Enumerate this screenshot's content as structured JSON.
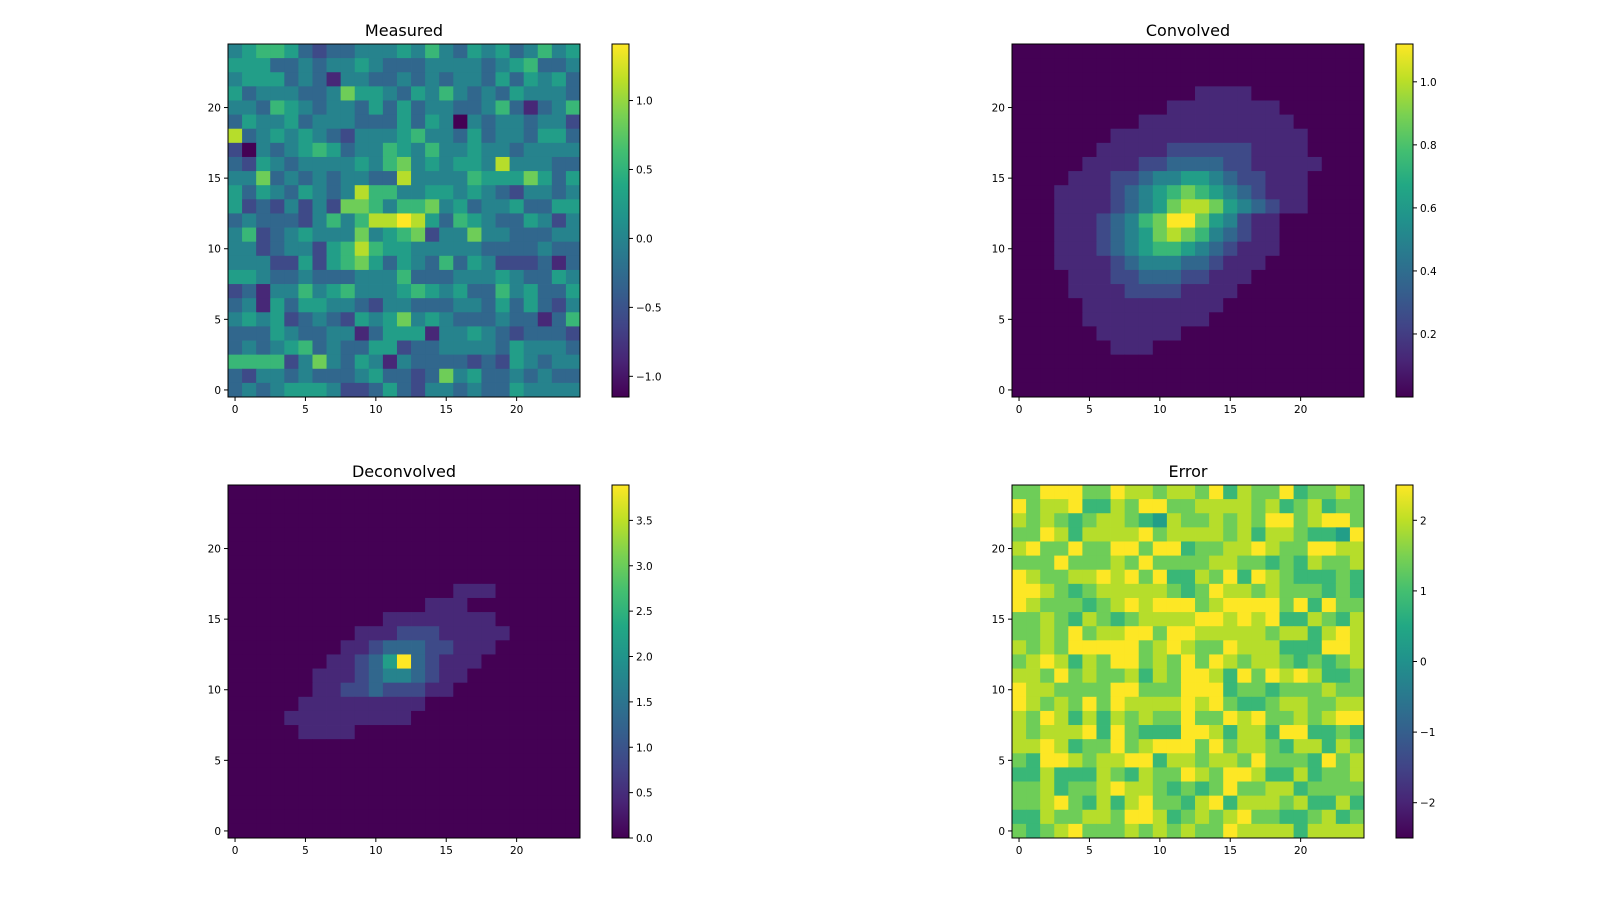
{
  "chart_data": [
    {
      "type": "heatmap",
      "title": "Measured",
      "colormap": "viridis",
      "grid_size": [
        25,
        25
      ],
      "origin": "lower",
      "xticks": [
        "0",
        "5",
        "10",
        "15",
        "20"
      ],
      "yticks": [
        "0",
        "5",
        "10",
        "15",
        "20"
      ],
      "vmin": -1.15,
      "vmax": 1.41,
      "colorbar_ticks": [
        {
          "value": -1.0,
          "label": "−1.0"
        },
        {
          "value": -0.5,
          "label": "−0.5"
        },
        {
          "value": 0.0,
          "label": "0.0"
        },
        {
          "value": 0.5,
          "label": "0.5"
        },
        {
          "value": 1.0,
          "label": "1.0"
        }
      ],
      "levels_note": "rows from y=24 down to y=0; each digit 0-9 is a level linearly mapped from vmin to vmax",
      "rows": [
        "4566532334445464354534645",
        "5553343445433344443456334",
        "4555343144334343443535453",
        "5344433475543546434354443",
        "4436543443535344334631346",
        "3544534443335354043443442",
        "8345454324445644353443553",
        "2043456534465464454434444",
        "3254344445467454554844433",
        "4473434344338444465557535",
        "5354354348664455454324434",
        "5232424277646674534453355",
        "3433324646889853654335424",
        "4623454447456724474433344",
        "4423442568655444443333433",
        "4442252567535436354222313",
        "5543343334446333444543354",
        "2314464564445654533645335",
        "3415355443244333443535324",
        "4545234325457454333433136",
        "3335433441355514454323332",
        "3434563433552334444354443",
        "6666247435414333323254344",
        "3244343334533237453343433",
        "3434555422353244343354444"
      ]
    },
    {
      "type": "heatmap",
      "title": "Convolved",
      "colormap": "viridis",
      "grid_size": [
        25,
        25
      ],
      "origin": "lower",
      "xticks": [
        "0",
        "5",
        "10",
        "15",
        "20"
      ],
      "yticks": [
        "0",
        "5",
        "10",
        "15",
        "20"
      ],
      "vmin": 0.0,
      "vmax": 1.12,
      "colorbar_ticks": [
        {
          "value": 0.2,
          "label": "0.2"
        },
        {
          "value": 0.4,
          "label": "0.4"
        },
        {
          "value": 0.6,
          "label": "0.6"
        },
        {
          "value": 0.8,
          "label": "0.8"
        },
        {
          "value": 1.0,
          "label": "1.0"
        }
      ],
      "levels_note": "rows from y=24 down to y=0; each digit 0-9 is a level linearly mapped from vmin to vmax",
      "rows": [
        "0000000000000000000000000",
        "0000000000000000000000000",
        "0000000000000000000000000",
        "0000000000000111100000000",
        "0000000000011111111000000",
        "0000000001111111111100000",
        "0000000111111111111110000",
        "0000001111122222211110000",
        "0000011112233332211111000",
        "0000111223445543221110000",
        "0001111234567654321110000",
        "0001111234578875432110000",
        "0001112346799754211000000",
        "0001112345787643211000000",
        "0001112345665432111000000",
        "0001111234443321110000000",
        "0000111223332211100000000",
        "0000111122221111000000000",
        "0000011111111110000000000",
        "0000011111111100000000000",
        "0000001111110000000000000",
        "0000000111000000000000000",
        "0000000000000000000000000",
        "0000000000000000000000000",
        "0000000000000000000000000"
      ]
    },
    {
      "type": "heatmap",
      "title": "Deconvolved",
      "colormap": "viridis",
      "grid_size": [
        25,
        25
      ],
      "origin": "lower",
      "xticks": [
        "0",
        "5",
        "10",
        "15",
        "20"
      ],
      "yticks": [
        "0",
        "5",
        "10",
        "15",
        "20"
      ],
      "vmin": 0.0,
      "vmax": 3.89,
      "colorbar_ticks": [
        {
          "value": 0.0,
          "label": "0.0"
        },
        {
          "value": 0.5,
          "label": "0.5"
        },
        {
          "value": 1.0,
          "label": "1.0"
        },
        {
          "value": 1.5,
          "label": "1.5"
        },
        {
          "value": 2.0,
          "label": "2.0"
        },
        {
          "value": 2.5,
          "label": "2.5"
        },
        {
          "value": 3.0,
          "label": "3.0"
        },
        {
          "value": 3.5,
          "label": "3.5"
        }
      ],
      "levels_note": "rows from y=24 down to y=0; each digit 0-9 is a level linearly mapped from vmin to vmax",
      "rows": [
        "0000000000000000000000000",
        "0000000000000000000000000",
        "0000000000000000000000000",
        "0000000000000000000000000",
        "0000000000000000000000000",
        "0000000000000000000000000",
        "0000000000000000000000000",
        "0000000000000000111000000",
        "0000000000000011100000000",
        "0000000000011111111000000",
        "0000000001112221111100000",
        "0000000011233322111000000",
        "0000000112359321110000000",
        "0000001112344321100000000",
        "0000001122322211000000000",
        "0000011111111100000000000",
        "0000111111111000000000000",
        "0000011110000000000000000",
        "0000000000000000000000000",
        "0000000000000000000000000",
        "0000000000000000000000000",
        "0000000000000000000000000",
        "0000000000000000000000000",
        "0000000000000000000000000",
        "0000000000000000000000000"
      ]
    },
    {
      "type": "heatmap",
      "title": "Error",
      "colormap": "viridis",
      "grid_size": [
        25,
        25
      ],
      "origin": "lower",
      "xticks": [
        "0",
        "5",
        "10",
        "15",
        "20"
      ],
      "yticks": [
        "0",
        "5",
        "10",
        "15",
        "20"
      ],
      "vmin": -2.5,
      "vmax": 2.5,
      "colorbar_ticks": [
        {
          "value": -2,
          "label": "−2"
        },
        {
          "value": -1,
          "label": "−1"
        },
        {
          "value": 0,
          "label": "0"
        },
        {
          "value": 1,
          "label": "1"
        },
        {
          "value": 2,
          "label": "2"
        }
      ],
      "levels_note": "rows from y=24 down to y=0; each digit 0-9 is a level linearly mapped from vmin to vmax",
      "rows": [
        "7799977988788796877967787",
        "9788966879977888878678677",
        "8787678876587787879978997",
        "7798688889788887868876659",
        "8977977997996778898779988",
        "7779777879777788776768778",
        "9877889897966879698766676",
        "9987678888876798878777676",
        "9877767898999789999796977",
        "7787687678888998989668768",
        "7787978899799888887886898",
        "8787999997898779888666998",
        "7898687997879798788767678",
        "8879787786879986979898667",
        "9887777997779996776777877",
        "9878797988889897667887788",
        "8798686878779779897787899",
        "8788896976669986886996676",
        "8898677978999797887688687",
        "7699878899688788797776978",
        "6686668768779879986686778",
        "7786778988767679778867777",
        "7789768689776896888786686",
        "6687788799867878977667867",
        "7678977787878779888868888"
      ]
    }
  ]
}
